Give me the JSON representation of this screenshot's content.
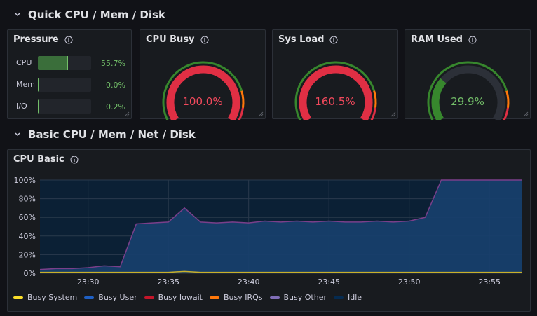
{
  "rows": [
    {
      "title": "Quick CPU / Mem / Disk"
    },
    {
      "title": "Basic CPU / Mem / Net / Disk"
    }
  ],
  "pressure": {
    "title": "Pressure",
    "items": [
      {
        "label": "CPU",
        "value": "55.7%",
        "fraction": 0.557
      },
      {
        "label": "Mem",
        "value": "0.0%",
        "fraction": 0.0
      },
      {
        "label": "I/O",
        "value": "0.2%",
        "fraction": 0.002
      }
    ]
  },
  "gauges": [
    {
      "title": "CPU Busy",
      "value": "100.0%",
      "fraction": 1.0,
      "color": "#f2495c",
      "arc_color": "#e02f44"
    },
    {
      "title": "Sys Load",
      "value": "160.5%",
      "fraction": 1.0,
      "color": "#f2495c",
      "arc_color": "#e02f44"
    },
    {
      "title": "RAM Used",
      "value": "29.9%",
      "fraction": 0.299,
      "color": "#73bf69",
      "arc_color": "#37872d"
    }
  ],
  "cpu_basic": {
    "title": "CPU Basic",
    "legend": [
      {
        "name": "Busy System",
        "color": "#fade2a"
      },
      {
        "name": "Busy User",
        "color": "#1f60c4"
      },
      {
        "name": "Busy Iowait",
        "color": "#c4162a"
      },
      {
        "name": "Busy IRQs",
        "color": "#ff780a"
      },
      {
        "name": "Busy Other",
        "color": "#806eb7"
      },
      {
        "name": "Idle",
        "color": "#052b51"
      }
    ]
  },
  "chart_data": {
    "type": "area",
    "yticks": [
      "0%",
      "20%",
      "40%",
      "60%",
      "80%",
      "100%"
    ],
    "xticks": [
      "23:30",
      "23:35",
      "23:40",
      "23:45",
      "23:50",
      "23:55"
    ],
    "ylim": [
      0,
      100
    ],
    "x_minutes": [
      -3,
      -2,
      -1,
      0,
      1,
      2,
      3,
      4,
      5,
      6,
      7,
      8,
      9,
      10,
      11,
      12,
      13,
      14,
      15,
      16,
      17,
      18,
      19,
      20,
      21,
      22,
      23,
      24,
      25,
      26,
      27
    ],
    "series": [
      {
        "name": "Busy User",
        "values": [
          4,
          5,
          5,
          6,
          8,
          7,
          53,
          54,
          55,
          70,
          55,
          54,
          55,
          54,
          56,
          55,
          56,
          55,
          56,
          55,
          55,
          56,
          55,
          56,
          60,
          100,
          100,
          100,
          100,
          100,
          100
        ]
      },
      {
        "name": "Busy System",
        "values": [
          1,
          1,
          1,
          1,
          1,
          1,
          1,
          1,
          1,
          2,
          1,
          1,
          1,
          1,
          1,
          1,
          1,
          1,
          1,
          1,
          1,
          1,
          1,
          1,
          1,
          1,
          1,
          1,
          1,
          1,
          1
        ]
      }
    ]
  }
}
